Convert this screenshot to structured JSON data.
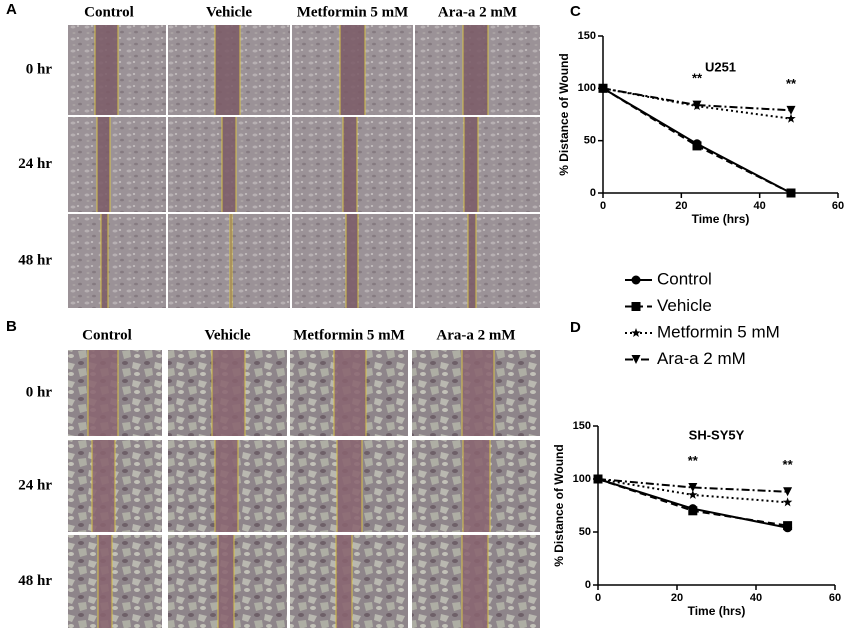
{
  "panels": [
    {
      "label": "A",
      "columns": [
        "Control",
        "Vehicle",
        "Metformin 5 mM",
        "Ara-a 2 mM"
      ],
      "rows": [
        "0 hr",
        "24 hr",
        "48 hr"
      ]
    },
    {
      "label": "B",
      "columns": [
        "Control",
        "Vehicle",
        "Metformin 5 mM",
        "Ara-a 2 mM"
      ],
      "rows": [
        "0 hr",
        "24 hr",
        "48 hr"
      ]
    }
  ],
  "chart_data": [
    {
      "type": "line",
      "label": "C",
      "title": "U251",
      "x_label": "Time (hrs)",
      "y_label": "% Distance of Wound",
      "x": [
        0,
        24,
        48
      ],
      "xlim": [
        0,
        60
      ],
      "xticks": [
        0,
        20,
        40,
        60
      ],
      "ylim": [
        0,
        150
      ],
      "yticks": [
        0,
        50,
        100,
        150
      ],
      "annotations": [
        "**",
        "**"
      ],
      "series": [
        {
          "name": "Control",
          "color": "#000000",
          "line": "solid",
          "marker": "circle",
          "values": [
            100,
            47,
            0
          ]
        },
        {
          "name": "Vehicle",
          "color": "#000000",
          "line": "dashed",
          "marker": "square",
          "values": [
            100,
            45,
            0
          ]
        },
        {
          "name": "Metformin 5 mM",
          "color": "#000000",
          "line": "dotted",
          "marker": "star",
          "values": [
            100,
            83,
            71
          ]
        },
        {
          "name": "Ara-a 2 mM",
          "color": "#000000",
          "line": "dashdot",
          "marker": "triangle-down",
          "values": [
            100,
            84,
            79
          ]
        }
      ]
    },
    {
      "type": "line",
      "label": "D",
      "title": "SH-SY5Y",
      "x_label": "Time (hrs)",
      "y_label": "% Distance of Wound",
      "x": [
        0,
        24,
        48
      ],
      "xlim": [
        0,
        60
      ],
      "xticks": [
        0,
        20,
        40,
        60
      ],
      "ylim": [
        0,
        150
      ],
      "yticks": [
        0,
        50,
        100,
        150
      ],
      "annotations": [
        "**",
        "**"
      ],
      "series": [
        {
          "color": "#000000",
          "line": "solid",
          "marker": "circle",
          "values": [
            100,
            72,
            54
          ]
        },
        {
          "color": "#000000",
          "line": "dashed",
          "marker": "square",
          "values": [
            100,
            70,
            56
          ]
        },
        {
          "color": "#000000",
          "line": "dotted",
          "marker": "star",
          "values": [
            100,
            85,
            78
          ]
        },
        {
          "color": "#000000",
          "line": "dashdot",
          "marker": "triangle-down",
          "values": [
            100,
            92,
            88
          ]
        }
      ]
    }
  ]
}
